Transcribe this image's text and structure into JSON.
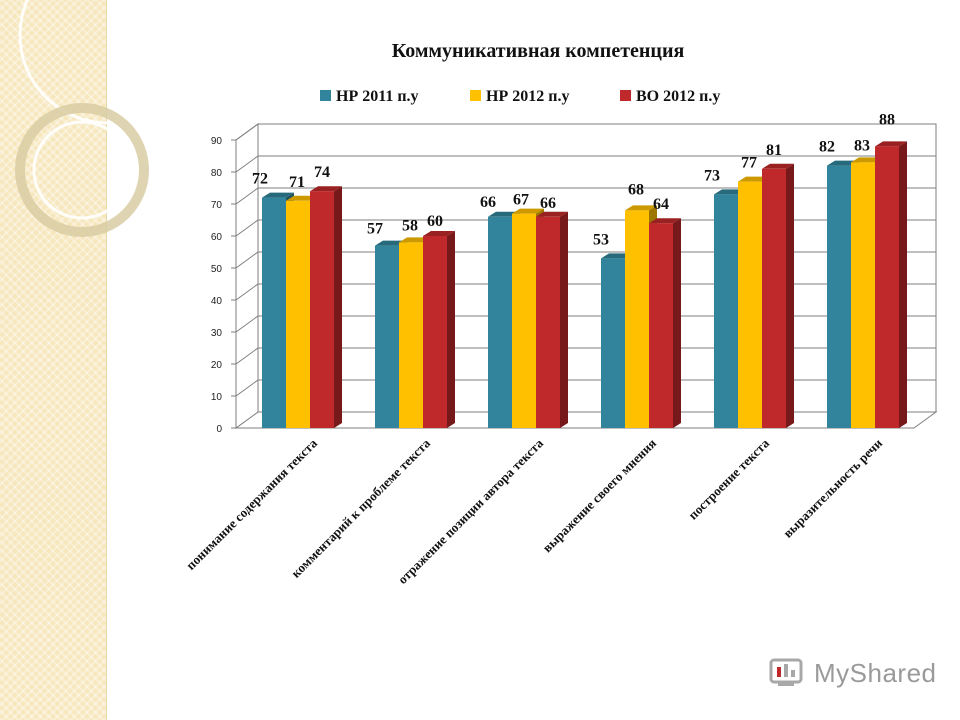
{
  "chart_data": {
    "type": "bar",
    "title": "Коммуникативная компетенция",
    "categories": [
      "понимание содержания текста",
      "комментарий к проблеме текста",
      "отражение позиции автора текста",
      "выражение своего мнения",
      "построение текста",
      "выразительность речи"
    ],
    "series": [
      {
        "name": "НР 2011 п.у",
        "color": "#31849b",
        "values": [
          72,
          57,
          66,
          53,
          73,
          82
        ]
      },
      {
        "name": "НР 2012 п.у",
        "color": "#ffc000",
        "values": [
          71,
          58,
          67,
          68,
          77,
          83
        ]
      },
      {
        "name": "ВО 2012 п.у",
        "color": "#c0292b",
        "values": [
          74,
          60,
          66,
          64,
          81,
          88
        ]
      }
    ],
    "ylim": [
      0,
      90
    ],
    "yticks": [
      0,
      10,
      20,
      30,
      40,
      50,
      60,
      70,
      80,
      90
    ],
    "grid": true,
    "legend_position": "top"
  },
  "watermark": {
    "text": "MyShared"
  }
}
